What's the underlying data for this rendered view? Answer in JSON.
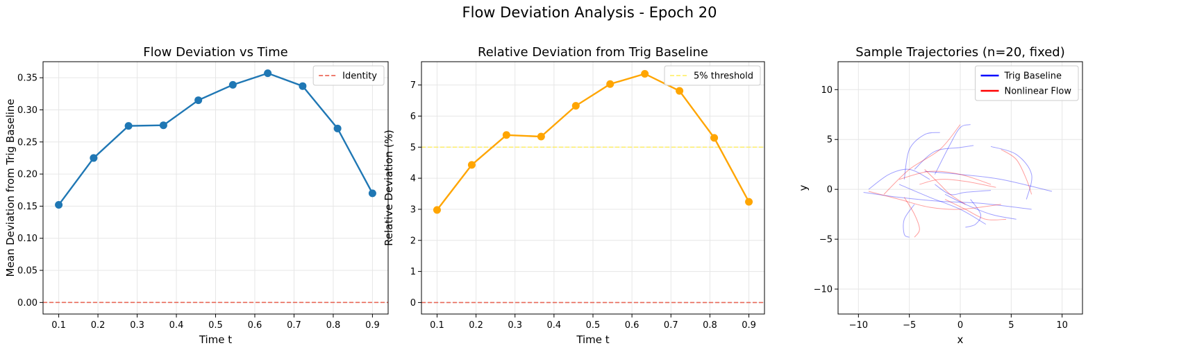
{
  "suptitle": "Flow Deviation Analysis - Epoch 20",
  "chart_data": [
    {
      "type": "line",
      "title": "Flow Deviation vs Time",
      "xlabel": "Time t",
      "ylabel": "Mean Deviation from Trig Baseline",
      "xlim": [
        0.06,
        0.94
      ],
      "ylim": [
        -0.018,
        0.375
      ],
      "xticks": [
        0.1,
        0.2,
        0.3,
        0.4,
        0.5,
        0.6,
        0.7,
        0.8,
        0.9
      ],
      "xtick_labels": [
        "0.1",
        "0.2",
        "0.3",
        "0.4",
        "0.5",
        "0.6",
        "0.7",
        "0.8",
        "0.9"
      ],
      "yticks": [
        0.0,
        0.05,
        0.1,
        0.15,
        0.2,
        0.25,
        0.3,
        0.35
      ],
      "ytick_labels": [
        "0.00",
        "0.05",
        "0.10",
        "0.15",
        "0.20",
        "0.25",
        "0.30",
        "0.35"
      ],
      "grid": true,
      "legend_position": "top-right",
      "series": [
        {
          "color": "#1f77b4",
          "x": [
            0.1,
            0.189,
            0.278,
            0.367,
            0.456,
            0.544,
            0.633,
            0.722,
            0.811,
            0.9
          ],
          "y": [
            0.152,
            0.225,
            0.275,
            0.276,
            0.315,
            0.339,
            0.357,
            0.337,
            0.271,
            0.17
          ]
        }
      ],
      "hlines": [
        {
          "name": "Identity",
          "y": 0.0,
          "color": "#e8513f",
          "style": "dashed",
          "in_legend": true
        }
      ]
    },
    {
      "type": "line",
      "title": "Relative Deviation from Trig Baseline",
      "xlabel": "Time t",
      "ylabel": "Relative Deviation (%)",
      "xlim": [
        0.06,
        0.94
      ],
      "ylim": [
        -0.37,
        7.75
      ],
      "xticks": [
        0.1,
        0.2,
        0.3,
        0.4,
        0.5,
        0.6,
        0.7,
        0.8,
        0.9
      ],
      "xtick_labels": [
        "0.1",
        "0.2",
        "0.3",
        "0.4",
        "0.5",
        "0.6",
        "0.7",
        "0.8",
        "0.9"
      ],
      "yticks": [
        0,
        1,
        2,
        3,
        4,
        5,
        6,
        7
      ],
      "ytick_labels": [
        "0",
        "1",
        "2",
        "3",
        "4",
        "5",
        "6",
        "7"
      ],
      "grid": true,
      "legend_position": "top-right",
      "series": [
        {
          "color": "#ffa500",
          "x": [
            0.1,
            0.189,
            0.278,
            0.367,
            0.456,
            0.544,
            0.633,
            0.722,
            0.811,
            0.9
          ],
          "y": [
            2.98,
            4.43,
            5.39,
            5.34,
            6.33,
            7.03,
            7.36,
            6.81,
            5.3,
            3.24
          ]
        }
      ],
      "hlines": [
        {
          "name": "5% threshold",
          "y": 5.0,
          "color": "#ffee58",
          "style": "dashed",
          "in_legend": true
        },
        {
          "y": 0.0,
          "color": "#e8513f",
          "style": "dashed",
          "in_legend": false
        }
      ]
    },
    {
      "type": "line",
      "title": "Sample Trajectories (n=20, fixed)",
      "xlabel": "x",
      "ylabel": "y",
      "xlim": [
        -12,
        12
      ],
      "ylim": [
        -12.5,
        12.8
      ],
      "xticks": [
        -10,
        -5,
        0,
        5,
        10
      ],
      "xtick_labels": [
        "−10",
        "−5",
        "0",
        "5",
        "10"
      ],
      "yticks": [
        -10,
        -5,
        0,
        5,
        10
      ],
      "ytick_labels": [
        "−10",
        "−5",
        "0",
        "5",
        "10"
      ],
      "grid": true,
      "legend_position": "top-right",
      "legend": [
        {
          "name": "Trig Baseline",
          "color": "#0000ff"
        },
        {
          "name": "Nonlinear Flow",
          "color": "#ff0000"
        }
      ],
      "trajectories": [
        {
          "color": "#0000ff",
          "points": [
            [
              -9.0,
              0.0
            ],
            [
              -7.0,
              1.5
            ],
            [
              -5.0,
              2.0
            ],
            [
              -3.0,
              1.0
            ]
          ]
        },
        {
          "color": "#0000ff",
          "points": [
            [
              -9.5,
              -0.3
            ],
            [
              -6.0,
              -0.8
            ],
            [
              -2.0,
              -1.2
            ],
            [
              2.0,
              -1.4
            ],
            [
              7.0,
              -2.0
            ]
          ]
        },
        {
          "color": "#0000ff",
          "points": [
            [
              -5.5,
              1.0
            ],
            [
              -5.0,
              4.0
            ],
            [
              -3.5,
              5.5
            ],
            [
              -2.0,
              5.7
            ]
          ]
        },
        {
          "color": "#0000ff",
          "points": [
            [
              -2.5,
              1.5
            ],
            [
              -1.0,
              4.5
            ],
            [
              0.0,
              6.2
            ],
            [
              1.0,
              6.5
            ]
          ]
        },
        {
          "color": "#0000ff",
          "points": [
            [
              -4.5,
              2.0
            ],
            [
              -2.5,
              3.8
            ],
            [
              0.0,
              4.2
            ],
            [
              1.3,
              4.4
            ]
          ]
        },
        {
          "color": "#0000ff",
          "points": [
            [
              3.0,
              4.3
            ],
            [
              5.5,
              3.5
            ],
            [
              7.0,
              1.5
            ],
            [
              6.5,
              -1.0
            ]
          ]
        },
        {
          "color": "#0000ff",
          "points": [
            [
              -3.5,
              1.8
            ],
            [
              0.0,
              1.5
            ],
            [
              4.0,
              1.0
            ],
            [
              9.0,
              -0.2
            ]
          ]
        },
        {
          "color": "#0000ff",
          "points": [
            [
              -6.0,
              0.5
            ],
            [
              -3.0,
              -0.8
            ],
            [
              0.0,
              -2.0
            ],
            [
              2.5,
              -3.5
            ]
          ]
        },
        {
          "color": "#0000ff",
          "points": [
            [
              -1.5,
              -0.5
            ],
            [
              0.5,
              -1.5
            ],
            [
              3.0,
              -2.5
            ],
            [
              5.5,
              -3.0
            ]
          ]
        },
        {
          "color": "#0000ff",
          "points": [
            [
              -4.5,
              -1.5
            ],
            [
              -5.5,
              -3.0
            ],
            [
              -5.5,
              -4.5
            ],
            [
              -5.0,
              -4.8
            ]
          ]
        },
        {
          "color": "#0000ff",
          "points": [
            [
              -2.5,
              0.5
            ],
            [
              -1.0,
              -0.5
            ],
            [
              0.5,
              -0.3
            ],
            [
              3.0,
              -0.1
            ]
          ]
        },
        {
          "color": "#0000ff",
          "points": [
            [
              1.0,
              -1.0
            ],
            [
              2.0,
              -2.5
            ],
            [
              1.5,
              -3.5
            ],
            [
              0.5,
              -3.8
            ]
          ]
        },
        {
          "color": "#ff0000",
          "points": [
            [
              -9.0,
              -0.2
            ],
            [
              -6.0,
              -1.0
            ],
            [
              -3.0,
              -1.8
            ],
            [
              0.0,
              -2.0
            ],
            [
              4.0,
              -1.5
            ]
          ]
        },
        {
          "color": "#ff0000",
          "points": [
            [
              -7.5,
              -0.5
            ],
            [
              -5.0,
              2.0
            ],
            [
              -2.0,
              4.0
            ],
            [
              0.0,
              6.5
            ]
          ]
        },
        {
          "color": "#ff0000",
          "points": [
            [
              -6.0,
              1.0
            ],
            [
              -3.0,
              1.8
            ],
            [
              0.0,
              1.5
            ],
            [
              3.0,
              0.5
            ]
          ]
        },
        {
          "color": "#ff0000",
          "points": [
            [
              4.0,
              4.0
            ],
            [
              5.5,
              3.0
            ],
            [
              6.5,
              1.0
            ],
            [
              7.0,
              -0.5
            ]
          ]
        },
        {
          "color": "#ff0000",
          "points": [
            [
              -5.5,
              -0.8
            ],
            [
              -4.5,
              -2.5
            ],
            [
              -4.0,
              -4.0
            ],
            [
              -4.5,
              -4.8
            ]
          ]
        },
        {
          "color": "#ff0000",
          "points": [
            [
              -4.0,
              0.5
            ],
            [
              -2.0,
              1.0
            ],
            [
              0.5,
              0.8
            ],
            [
              3.5,
              0.2
            ]
          ]
        },
        {
          "color": "#ff0000",
          "points": [
            [
              -1.5,
              -1.0
            ],
            [
              0.5,
              -2.0
            ],
            [
              2.5,
              -3.0
            ],
            [
              4.5,
              -3.0
            ]
          ]
        },
        {
          "color": "#ff0000",
          "points": [
            [
              -3.5,
              2.0
            ],
            [
              -2.0,
              0.5
            ],
            [
              -1.0,
              -0.5
            ],
            [
              0.5,
              -1.5
            ]
          ]
        }
      ]
    }
  ]
}
